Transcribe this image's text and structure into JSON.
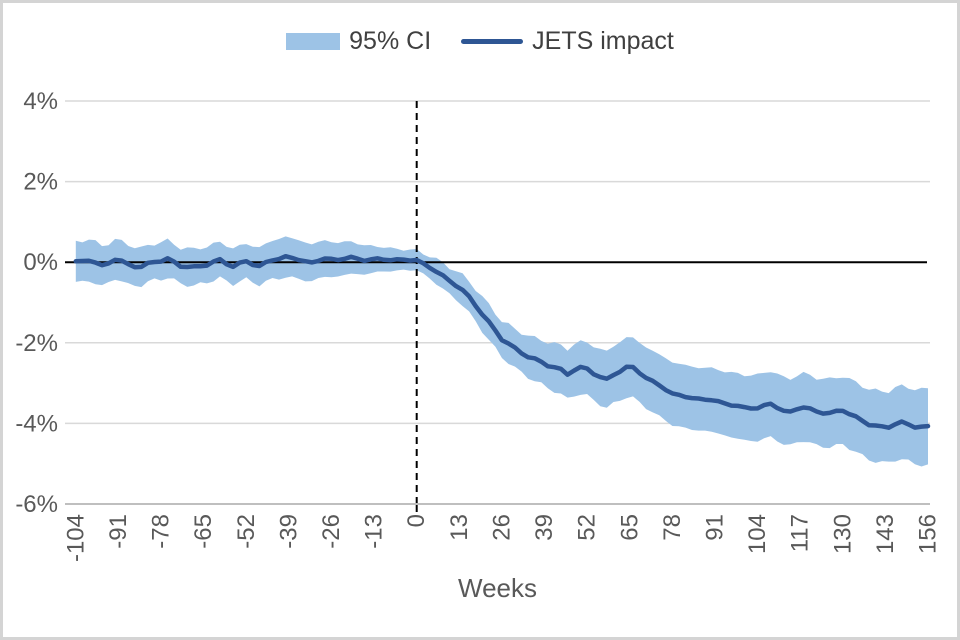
{
  "legend": {
    "ci_label": "95% CI",
    "impact_label": "JETS impact"
  },
  "colors": {
    "band": "#9DC3E6",
    "line": "#2E5694",
    "grid": "#D9D9D9",
    "axis": "#BFBFBF",
    "zero_line": "#000000",
    "event_line": "#000000",
    "tick_text": "#595959",
    "legend_text": "#404040"
  },
  "chart_data": {
    "type": "line",
    "title": "",
    "xlabel": "Weeks",
    "ylabel": "",
    "legend_position": "top-center",
    "grid": "horizontal",
    "xlim": [
      -107.3,
      156.6
    ],
    "ylim": [
      -6,
      4
    ],
    "x_ticks": [
      -104,
      -91,
      -78,
      -65,
      -52,
      -39,
      -26,
      -13,
      0,
      13,
      26,
      39,
      52,
      65,
      78,
      91,
      104,
      117,
      130,
      143,
      156
    ],
    "x_tick_labels": [
      "-104",
      "-91",
      "-78",
      "-65",
      "-52",
      "-39",
      "-26",
      "-13",
      "0",
      "13",
      "26",
      "39",
      "52",
      "65",
      "78",
      "91",
      "104",
      "117",
      "130",
      "143",
      "156"
    ],
    "y_ticks": [
      4,
      2,
      0,
      -2,
      -4,
      -6
    ],
    "y_tick_labels": [
      "4%",
      "2%",
      "0%",
      "-2%",
      "-4%",
      "-6%"
    ],
    "zero_reference_line": 0,
    "event_line_x": 0,
    "x_unit": "weeks relative to event",
    "y_unit": "percent",
    "x": [
      -104,
      -100,
      -96,
      -92,
      -88,
      -84,
      -80,
      -76,
      -72,
      -68,
      -64,
      -60,
      -56,
      -52,
      -48,
      -44,
      -40,
      -36,
      -32,
      -28,
      -24,
      -20,
      -16,
      -12,
      -8,
      -4,
      0,
      4,
      8,
      13,
      17,
      21,
      26,
      30,
      35,
      39,
      43,
      46,
      49,
      52,
      55,
      58,
      61,
      65,
      70,
      74,
      78,
      83,
      87,
      91,
      96,
      100,
      104,
      108,
      113,
      117,
      121,
      126,
      130,
      134,
      139,
      143,
      147,
      151,
      156
    ],
    "series": [
      {
        "name": "JETS impact",
        "type": "line",
        "values": [
          0.0,
          0.06,
          -0.1,
          0.08,
          -0.06,
          -0.12,
          0.02,
          0.07,
          -0.08,
          -0.14,
          -0.05,
          0.05,
          -0.1,
          0.02,
          -0.1,
          0.06,
          0.13,
          0.07,
          -0.02,
          0.1,
          0.05,
          0.13,
          0.04,
          0.09,
          0.05,
          0.07,
          0.04,
          -0.12,
          -0.35,
          -0.62,
          -0.95,
          -1.4,
          -1.9,
          -2.15,
          -2.38,
          -2.52,
          -2.63,
          -2.78,
          -2.6,
          -2.66,
          -2.8,
          -2.92,
          -2.74,
          -2.56,
          -2.86,
          -3.06,
          -3.26,
          -3.36,
          -3.4,
          -3.43,
          -3.55,
          -3.6,
          -3.63,
          -3.5,
          -3.76,
          -3.58,
          -3.68,
          -3.76,
          -3.66,
          -3.86,
          -4.05,
          -4.12,
          -3.96,
          -4.06,
          -4.1
        ]
      },
      {
        "name": "95% CI half-width",
        "type": "band-half-width",
        "note": "band = impact value plus/minus this half-width",
        "values": [
          0.5,
          0.52,
          0.5,
          0.48,
          0.5,
          0.46,
          0.45,
          0.46,
          0.44,
          0.46,
          0.44,
          0.45,
          0.44,
          0.44,
          0.46,
          0.48,
          0.5,
          0.48,
          0.46,
          0.45,
          0.42,
          0.4,
          0.36,
          0.32,
          0.28,
          0.26,
          0.24,
          0.28,
          0.32,
          0.36,
          0.4,
          0.43,
          0.45,
          0.48,
          0.52,
          0.56,
          0.6,
          0.62,
          0.64,
          0.66,
          0.68,
          0.7,
          0.72,
          0.74,
          0.75,
          0.77,
          0.78,
          0.78,
          0.78,
          0.79,
          0.8,
          0.81,
          0.82,
          0.82,
          0.83,
          0.83,
          0.84,
          0.84,
          0.85,
          0.86,
          0.88,
          0.88,
          0.9,
          0.92,
          0.95
        ]
      }
    ]
  }
}
